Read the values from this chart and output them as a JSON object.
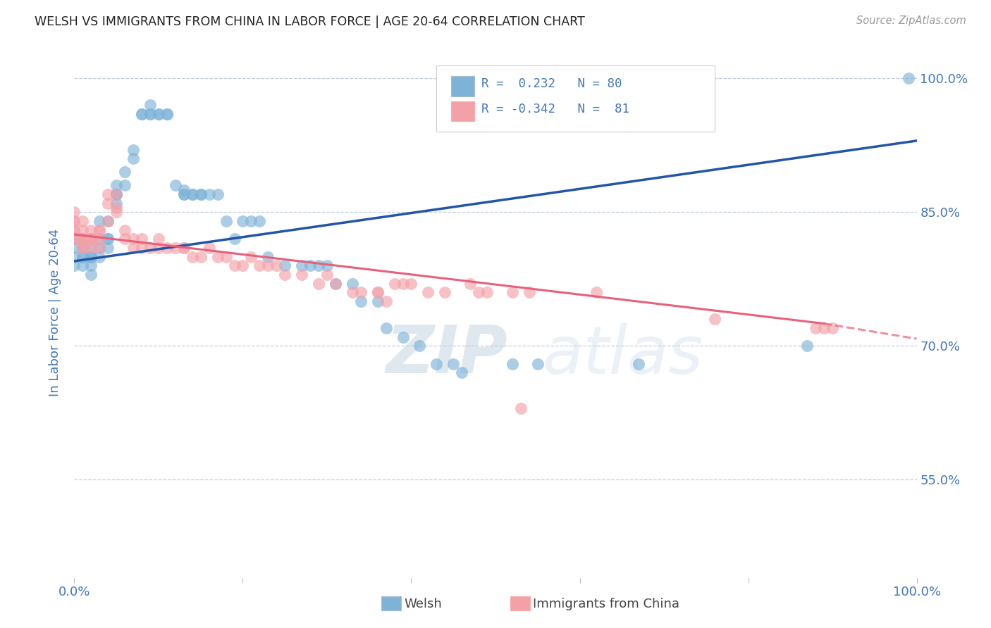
{
  "title": "WELSH VS IMMIGRANTS FROM CHINA IN LABOR FORCE | AGE 20-64 CORRELATION CHART",
  "source": "Source: ZipAtlas.com",
  "ylabel": "In Labor Force | Age 20-64",
  "ytick_labels": [
    "100.0%",
    "85.0%",
    "70.0%",
    "55.0%"
  ],
  "ytick_values": [
    1.0,
    0.85,
    0.7,
    0.55
  ],
  "xlim": [
    0.0,
    1.0
  ],
  "ylim": [
    0.44,
    1.035
  ],
  "blue_R": 0.232,
  "blue_N": 80,
  "pink_R": -0.342,
  "pink_N": 81,
  "blue_color": "#7EB3D8",
  "pink_color": "#F4A0A8",
  "blue_line_color": "#2255AA",
  "pink_line_color": "#E8607A",
  "title_color": "#333333",
  "axis_color": "#4477BB",
  "legend_blue_label": "Welsh",
  "legend_pink_label": "Immigrants from China",
  "watermark_zip": "ZIP",
  "watermark_atlas": "atlas",
  "blue_trend": [
    0.0,
    0.795,
    1.0,
    0.93
  ],
  "pink_trend_solid": [
    0.0,
    0.825,
    0.89,
    0.725
  ],
  "pink_trend_dash": [
    0.89,
    0.725,
    1.0,
    0.708
  ],
  "blue_scatter": [
    [
      0.0,
      0.82
    ],
    [
      0.0,
      0.81
    ],
    [
      0.0,
      0.8
    ],
    [
      0.0,
      0.79
    ],
    [
      0.0,
      0.82
    ],
    [
      0.01,
      0.82
    ],
    [
      0.01,
      0.81
    ],
    [
      0.01,
      0.8
    ],
    [
      0.01,
      0.82
    ],
    [
      0.01,
      0.8
    ],
    [
      0.01,
      0.79
    ],
    [
      0.01,
      0.81
    ],
    [
      0.01,
      0.82
    ],
    [
      0.02,
      0.82
    ],
    [
      0.02,
      0.8
    ],
    [
      0.02,
      0.81
    ],
    [
      0.02,
      0.8
    ],
    [
      0.02,
      0.79
    ],
    [
      0.02,
      0.78
    ],
    [
      0.02,
      0.8
    ],
    [
      0.03,
      0.82
    ],
    [
      0.03,
      0.8
    ],
    [
      0.03,
      0.81
    ],
    [
      0.03,
      0.84
    ],
    [
      0.04,
      0.82
    ],
    [
      0.04,
      0.81
    ],
    [
      0.04,
      0.82
    ],
    [
      0.04,
      0.84
    ],
    [
      0.05,
      0.87
    ],
    [
      0.05,
      0.88
    ],
    [
      0.05,
      0.87
    ],
    [
      0.05,
      0.86
    ],
    [
      0.06,
      0.895
    ],
    [
      0.06,
      0.88
    ],
    [
      0.07,
      0.91
    ],
    [
      0.07,
      0.92
    ],
    [
      0.08,
      0.96
    ],
    [
      0.08,
      0.96
    ],
    [
      0.09,
      0.96
    ],
    [
      0.09,
      0.96
    ],
    [
      0.09,
      0.97
    ],
    [
      0.1,
      0.96
    ],
    [
      0.1,
      0.96
    ],
    [
      0.11,
      0.96
    ],
    [
      0.11,
      0.96
    ],
    [
      0.12,
      0.88
    ],
    [
      0.13,
      0.87
    ],
    [
      0.13,
      0.87
    ],
    [
      0.13,
      0.875
    ],
    [
      0.14,
      0.87
    ],
    [
      0.14,
      0.87
    ],
    [
      0.15,
      0.87
    ],
    [
      0.15,
      0.87
    ],
    [
      0.16,
      0.87
    ],
    [
      0.17,
      0.87
    ],
    [
      0.18,
      0.84
    ],
    [
      0.19,
      0.82
    ],
    [
      0.2,
      0.84
    ],
    [
      0.21,
      0.84
    ],
    [
      0.22,
      0.84
    ],
    [
      0.23,
      0.8
    ],
    [
      0.25,
      0.79
    ],
    [
      0.27,
      0.79
    ],
    [
      0.28,
      0.79
    ],
    [
      0.29,
      0.79
    ],
    [
      0.3,
      0.79
    ],
    [
      0.31,
      0.77
    ],
    [
      0.33,
      0.77
    ],
    [
      0.34,
      0.75
    ],
    [
      0.36,
      0.75
    ],
    [
      0.37,
      0.72
    ],
    [
      0.39,
      0.71
    ],
    [
      0.41,
      0.7
    ],
    [
      0.43,
      0.68
    ],
    [
      0.45,
      0.68
    ],
    [
      0.46,
      0.67
    ],
    [
      0.52,
      0.68
    ],
    [
      0.55,
      0.68
    ],
    [
      0.67,
      0.68
    ],
    [
      0.87,
      0.7
    ],
    [
      0.99,
      1.0
    ]
  ],
  "pink_scatter": [
    [
      0.0,
      0.83
    ],
    [
      0.0,
      0.84
    ],
    [
      0.0,
      0.82
    ],
    [
      0.0,
      0.83
    ],
    [
      0.0,
      0.84
    ],
    [
      0.0,
      0.85
    ],
    [
      0.0,
      0.82
    ],
    [
      0.01,
      0.82
    ],
    [
      0.01,
      0.81
    ],
    [
      0.01,
      0.82
    ],
    [
      0.01,
      0.83
    ],
    [
      0.01,
      0.84
    ],
    [
      0.01,
      0.82
    ],
    [
      0.01,
      0.82
    ],
    [
      0.01,
      0.81
    ],
    [
      0.01,
      0.82
    ],
    [
      0.02,
      0.82
    ],
    [
      0.02,
      0.83
    ],
    [
      0.02,
      0.81
    ],
    [
      0.02,
      0.82
    ],
    [
      0.02,
      0.82
    ],
    [
      0.03,
      0.83
    ],
    [
      0.03,
      0.81
    ],
    [
      0.03,
      0.82
    ],
    [
      0.03,
      0.83
    ],
    [
      0.04,
      0.84
    ],
    [
      0.04,
      0.87
    ],
    [
      0.04,
      0.86
    ],
    [
      0.05,
      0.87
    ],
    [
      0.05,
      0.855
    ],
    [
      0.05,
      0.85
    ],
    [
      0.06,
      0.83
    ],
    [
      0.06,
      0.82
    ],
    [
      0.07,
      0.81
    ],
    [
      0.07,
      0.82
    ],
    [
      0.08,
      0.81
    ],
    [
      0.08,
      0.82
    ],
    [
      0.09,
      0.81
    ],
    [
      0.1,
      0.82
    ],
    [
      0.1,
      0.81
    ],
    [
      0.11,
      0.81
    ],
    [
      0.12,
      0.81
    ],
    [
      0.13,
      0.81
    ],
    [
      0.13,
      0.81
    ],
    [
      0.14,
      0.8
    ],
    [
      0.15,
      0.8
    ],
    [
      0.16,
      0.81
    ],
    [
      0.17,
      0.8
    ],
    [
      0.18,
      0.8
    ],
    [
      0.19,
      0.79
    ],
    [
      0.2,
      0.79
    ],
    [
      0.21,
      0.8
    ],
    [
      0.22,
      0.79
    ],
    [
      0.23,
      0.79
    ],
    [
      0.24,
      0.79
    ],
    [
      0.25,
      0.78
    ],
    [
      0.27,
      0.78
    ],
    [
      0.29,
      0.77
    ],
    [
      0.3,
      0.78
    ],
    [
      0.31,
      0.77
    ],
    [
      0.33,
      0.76
    ],
    [
      0.34,
      0.76
    ],
    [
      0.36,
      0.76
    ],
    [
      0.36,
      0.76
    ],
    [
      0.37,
      0.75
    ],
    [
      0.38,
      0.77
    ],
    [
      0.39,
      0.77
    ],
    [
      0.4,
      0.77
    ],
    [
      0.42,
      0.76
    ],
    [
      0.44,
      0.76
    ],
    [
      0.47,
      0.77
    ],
    [
      0.48,
      0.76
    ],
    [
      0.49,
      0.76
    ],
    [
      0.52,
      0.76
    ],
    [
      0.53,
      0.63
    ],
    [
      0.54,
      0.76
    ],
    [
      0.62,
      0.76
    ],
    [
      0.76,
      0.73
    ],
    [
      0.88,
      0.72
    ],
    [
      0.89,
      0.72
    ],
    [
      0.9,
      0.72
    ]
  ]
}
